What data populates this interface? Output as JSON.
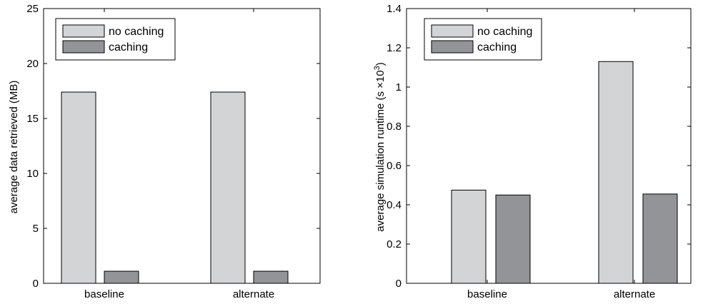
{
  "chart_data": [
    {
      "type": "bar",
      "categories": [
        "baseline",
        "alternate"
      ],
      "series": [
        {
          "name": "no caching",
          "values": [
            17.4,
            17.4
          ],
          "color": "#d3d4d6"
        },
        {
          "name": "caching",
          "values": [
            1.1,
            1.1
          ],
          "color": "#939497"
        }
      ],
      "ylabel": "average data retrieved (MB)",
      "xlabel": "",
      "ylim": [
        0,
        25
      ],
      "yticks": [
        "0",
        "5",
        "10",
        "15",
        "20",
        "25"
      ],
      "grid": false,
      "legend": "top-left"
    },
    {
      "type": "bar",
      "categories": [
        "baseline",
        "alternate"
      ],
      "series": [
        {
          "name": "no caching",
          "values": [
            0.475,
            1.13
          ],
          "color": "#d3d4d6"
        },
        {
          "name": "caching",
          "values": [
            0.45,
            0.455
          ],
          "color": "#939497"
        }
      ],
      "ylabel": "average simulation runtime (s ×10",
      "ylabel_exponent": "3",
      "ylabel_suffix": ")",
      "xlabel": "",
      "ylim": [
        0,
        1.4
      ],
      "yticks": [
        "0",
        "0.2",
        "0.4",
        "0.6",
        "0.8",
        "1",
        "1.2",
        "1.4"
      ],
      "grid": false,
      "legend": "top-left"
    }
  ]
}
